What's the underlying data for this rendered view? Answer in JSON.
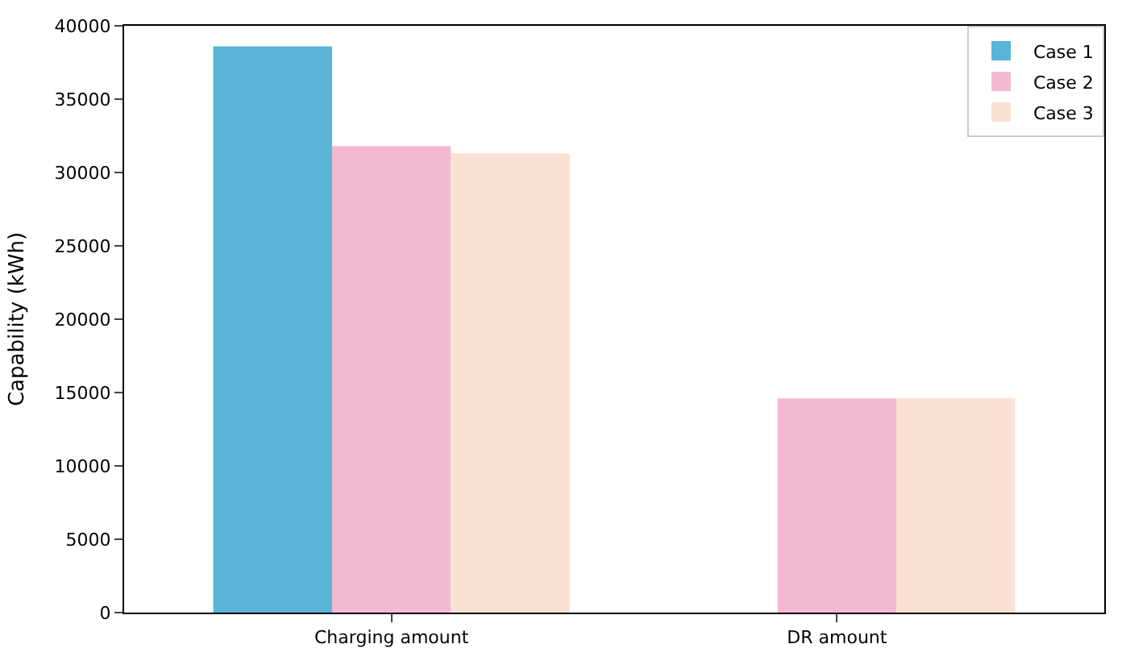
{
  "chart_data": {
    "type": "bar",
    "ylabel": "Capability (kWh)",
    "categories": [
      "Charging amount",
      "DR amount"
    ],
    "series": [
      {
        "name": "Case 1",
        "color": "#5ab4d8",
        "values": [
          38600,
          0
        ]
      },
      {
        "name": "Case 2",
        "color": "#f4b9d2",
        "values": [
          31800,
          14600
        ]
      },
      {
        "name": "Case 3",
        "color": "#fbe1d3",
        "values": [
          31300,
          14600
        ]
      }
    ],
    "ylim": [
      0,
      40000
    ],
    "yticks": [
      0,
      5000,
      10000,
      15000,
      20000,
      25000,
      30000,
      35000,
      40000
    ],
    "legend": "top right"
  }
}
